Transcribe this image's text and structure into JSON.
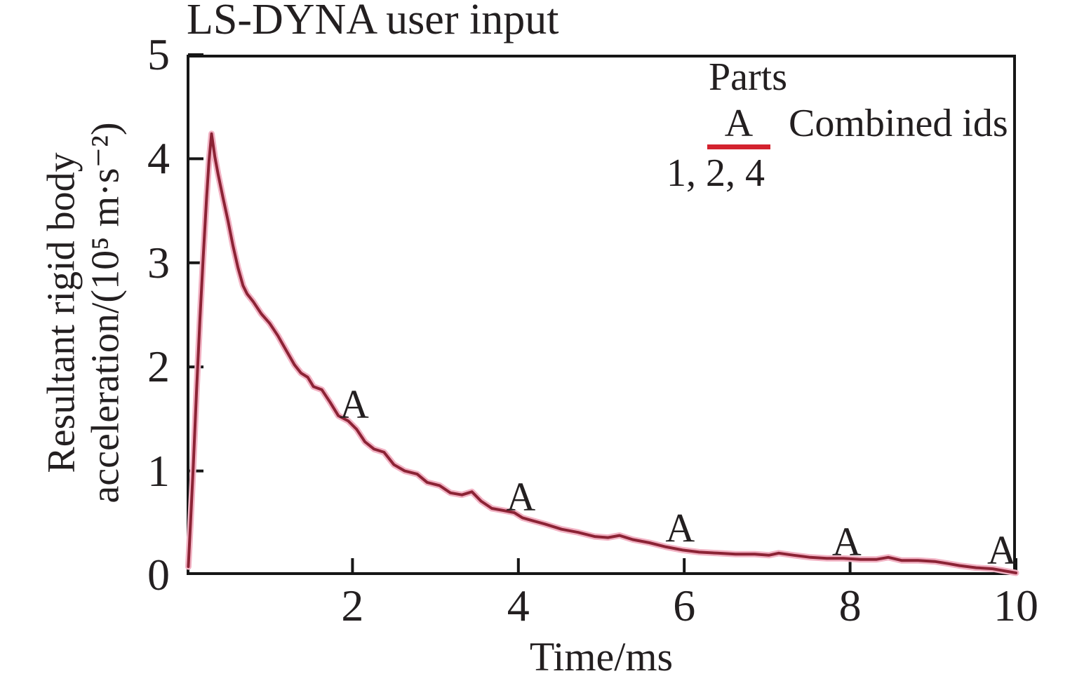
{
  "figure": {
    "background": "#ffffff",
    "text_color": "#231f20",
    "axis_color": "#161616"
  },
  "chart_data": {
    "type": "line",
    "title": "LS-DYNA user input",
    "xlabel": "Time/ms",
    "ylabel_line1": "Resultant rigid body",
    "ylabel_line2": "acceleration/(10⁵ m·s⁻²)",
    "xlim": [
      0,
      10
    ],
    "ylim": [
      0,
      5
    ],
    "x_ticks": [
      2,
      4,
      6,
      8,
      10
    ],
    "y_ticks": [
      0,
      1,
      2,
      3,
      4,
      5
    ],
    "grid": false,
    "legend": {
      "position": "top-right",
      "title": "Parts",
      "key_letter": "A",
      "key_color": "#d3222e",
      "label": "Combined ids",
      "sublabel": "1, 2, 4"
    },
    "series": [
      {
        "name": "A — Combined ids 1, 2, 4",
        "marker_letter": "A",
        "color": "#8c2335",
        "halo_color": "#f2b3c4",
        "points": [
          [
            0.02,
            0.08
          ],
          [
            0.05,
            0.55
          ],
          [
            0.08,
            1.05
          ],
          [
            0.12,
            1.78
          ],
          [
            0.16,
            2.45
          ],
          [
            0.2,
            3.05
          ],
          [
            0.24,
            3.62
          ],
          [
            0.27,
            3.98
          ],
          [
            0.3,
            4.24
          ],
          [
            0.34,
            4.02
          ],
          [
            0.38,
            3.85
          ],
          [
            0.44,
            3.62
          ],
          [
            0.5,
            3.4
          ],
          [
            0.56,
            3.16
          ],
          [
            0.62,
            2.95
          ],
          [
            0.68,
            2.78
          ],
          [
            0.73,
            2.7
          ],
          [
            0.8,
            2.63
          ],
          [
            0.9,
            2.51
          ],
          [
            1.0,
            2.42
          ],
          [
            1.1,
            2.3
          ],
          [
            1.2,
            2.16
          ],
          [
            1.3,
            2.02
          ],
          [
            1.38,
            1.94
          ],
          [
            1.46,
            1.9
          ],
          [
            1.53,
            1.81
          ],
          [
            1.63,
            1.78
          ],
          [
            1.73,
            1.66
          ],
          [
            1.83,
            1.53
          ],
          [
            1.95,
            1.48
          ],
          [
            2.05,
            1.4
          ],
          [
            2.15,
            1.28
          ],
          [
            2.26,
            1.21
          ],
          [
            2.38,
            1.18
          ],
          [
            2.5,
            1.06
          ],
          [
            2.63,
            1.0
          ],
          [
            2.78,
            0.97
          ],
          [
            2.9,
            0.89
          ],
          [
            3.05,
            0.86
          ],
          [
            3.18,
            0.79
          ],
          [
            3.32,
            0.77
          ],
          [
            3.44,
            0.8
          ],
          [
            3.55,
            0.71
          ],
          [
            3.68,
            0.64
          ],
          [
            3.82,
            0.62
          ],
          [
            3.95,
            0.6
          ],
          [
            4.05,
            0.55
          ],
          [
            4.18,
            0.52
          ],
          [
            4.32,
            0.49
          ],
          [
            4.52,
            0.44
          ],
          [
            4.72,
            0.41
          ],
          [
            4.92,
            0.37
          ],
          [
            5.08,
            0.36
          ],
          [
            5.22,
            0.38
          ],
          [
            5.38,
            0.34
          ],
          [
            5.58,
            0.31
          ],
          [
            5.78,
            0.27
          ],
          [
            5.98,
            0.24
          ],
          [
            6.18,
            0.22
          ],
          [
            6.4,
            0.21
          ],
          [
            6.62,
            0.2
          ],
          [
            6.85,
            0.2
          ],
          [
            7.02,
            0.19
          ],
          [
            7.14,
            0.21
          ],
          [
            7.32,
            0.19
          ],
          [
            7.52,
            0.17
          ],
          [
            7.72,
            0.16
          ],
          [
            7.92,
            0.16
          ],
          [
            8.12,
            0.15
          ],
          [
            8.32,
            0.15
          ],
          [
            8.46,
            0.17
          ],
          [
            8.62,
            0.14
          ],
          [
            8.82,
            0.14
          ],
          [
            9.02,
            0.13
          ],
          [
            9.18,
            0.11
          ],
          [
            9.32,
            0.09
          ],
          [
            9.52,
            0.07
          ],
          [
            9.72,
            0.06
          ],
          [
            9.86,
            0.04
          ],
          [
            10.0,
            0.02
          ]
        ],
        "marker_points": [
          [
            2.02,
            1.64
          ],
          [
            4.03,
            0.75
          ],
          [
            5.95,
            0.45
          ],
          [
            7.96,
            0.32
          ],
          [
            9.83,
            0.24
          ]
        ]
      }
    ]
  }
}
